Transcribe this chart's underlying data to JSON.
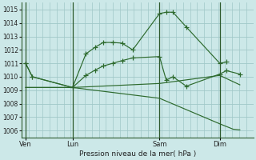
{
  "xlabel": "Pression niveau de la mer( hPa )",
  "background_color": "#cce8e8",
  "grid_color": "#a0c8c8",
  "line_color": "#2d6a2d",
  "vline_color": "#2d5a2d",
  "ylim": [
    1005.5,
    1015.5
  ],
  "yticks": [
    1006,
    1007,
    1008,
    1009,
    1010,
    1011,
    1012,
    1013,
    1014,
    1015
  ],
  "xtick_labels": [
    "Ven",
    "Lun",
    "Sam",
    "Dim"
  ],
  "xtick_positions": [
    0,
    3.5,
    10,
    14.5
  ],
  "vline_positions": [
    0,
    3.5,
    10,
    14.5
  ],
  "xlim": [
    -0.3,
    17.0
  ],
  "lines": [
    {
      "x": [
        0,
        0.5,
        3.5,
        4.5,
        5.2,
        5.8,
        6.5,
        7.2,
        8.0,
        10.0,
        10.5,
        11.0,
        12.0,
        14.5,
        15.0
      ],
      "y": [
        1011.0,
        1010.0,
        1009.2,
        1011.7,
        1012.2,
        1012.55,
        1012.55,
        1012.5,
        1012.0,
        1014.7,
        1014.8,
        1014.8,
        1013.7,
        1011.0,
        1011.1
      ],
      "marker": "+",
      "markersize": 4.5
    },
    {
      "x": [
        0,
        0.5,
        3.5,
        4.5,
        5.2,
        5.8,
        6.5,
        7.2,
        8.0,
        10.0,
        10.5,
        11.0,
        12.0,
        14.5,
        15.0,
        16.0
      ],
      "y": [
        1011.0,
        1010.0,
        1009.2,
        1010.1,
        1010.5,
        1010.8,
        1011.0,
        1011.2,
        1011.4,
        1011.5,
        1009.75,
        1010.0,
        1009.3,
        1010.2,
        1010.45,
        1010.2
      ],
      "marker": "+",
      "markersize": 4.5
    },
    {
      "x": [
        0,
        3.5,
        10,
        14.5,
        16.0
      ],
      "y": [
        1009.2,
        1009.2,
        1009.5,
        1010.1,
        1009.4
      ],
      "marker": null,
      "markersize": 0
    },
    {
      "x": [
        0,
        3.5,
        10,
        14.5,
        15.5,
        16.0
      ],
      "y": [
        1009.2,
        1009.2,
        1008.4,
        1006.5,
        1006.1,
        1006.05
      ],
      "marker": null,
      "markersize": 0
    }
  ]
}
